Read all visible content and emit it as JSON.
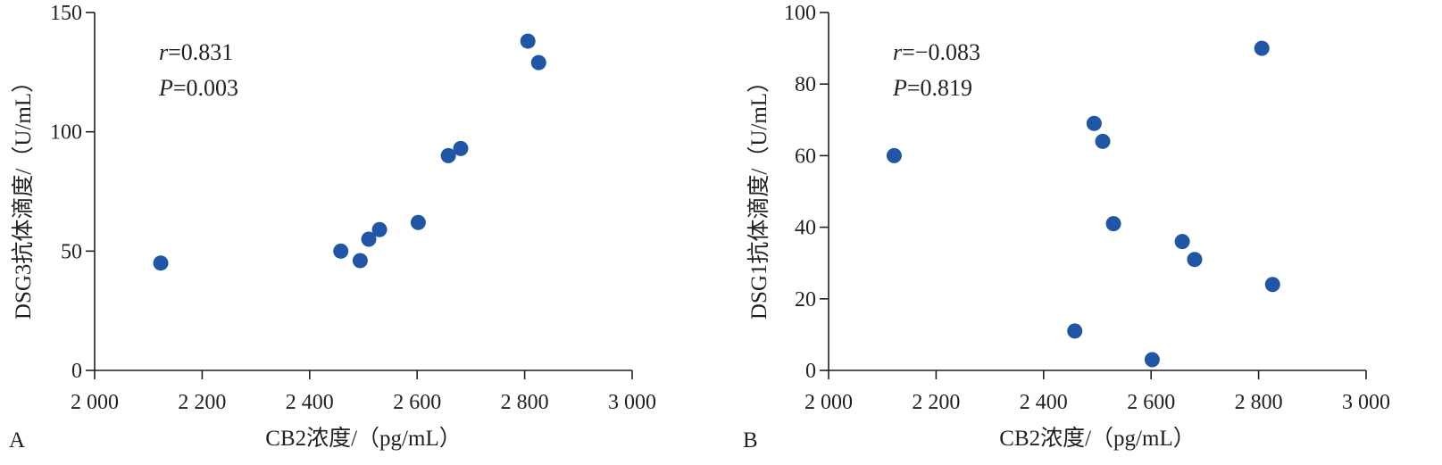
{
  "colors": {
    "point": "#2155a6",
    "axis": "#231f20",
    "background": "#ffffff"
  },
  "chart_data": [
    {
      "type": "scatter",
      "panel_label": "A",
      "xlabel": "CB2浓度/（pg/mL）",
      "ylabel": "DSG3抗体滴度/（U/mL）",
      "xlim": [
        2000,
        3000
      ],
      "ylim": [
        0,
        150
      ],
      "xticks": [
        2000,
        2200,
        2400,
        2600,
        2800,
        3000
      ],
      "xtick_labels": [
        "2 000",
        "2 200",
        "2 400",
        "2 600",
        "2 800",
        "3 000"
      ],
      "yticks": [
        0,
        50,
        100,
        150
      ],
      "ytick_labels": [
        "0",
        "50",
        "100",
        "150"
      ],
      "stats": [
        {
          "symbol": "r",
          "value": "=0.831"
        },
        {
          "symbol": "P",
          "value": "=0.003"
        }
      ],
      "grid": false,
      "points": [
        {
          "x": 2123,
          "y": 45
        },
        {
          "x": 2458,
          "y": 50
        },
        {
          "x": 2494,
          "y": 46
        },
        {
          "x": 2510,
          "y": 55
        },
        {
          "x": 2530,
          "y": 59
        },
        {
          "x": 2602,
          "y": 62
        },
        {
          "x": 2658,
          "y": 90
        },
        {
          "x": 2681,
          "y": 93
        },
        {
          "x": 2806,
          "y": 138
        },
        {
          "x": 2826,
          "y": 129
        }
      ]
    },
    {
      "type": "scatter",
      "panel_label": "B",
      "xlabel": "CB2浓度/（pg/mL）",
      "ylabel": "DSG1抗体滴度/（U/mL）",
      "xlim": [
        2000,
        3000
      ],
      "ylim": [
        0,
        100
      ],
      "xticks": [
        2000,
        2200,
        2400,
        2600,
        2800,
        3000
      ],
      "xtick_labels": [
        "2 000",
        "2 200",
        "2 400",
        "2 600",
        "2 800",
        "3 000"
      ],
      "yticks": [
        0,
        20,
        40,
        60,
        80,
        100
      ],
      "ytick_labels": [
        "0",
        "20",
        "40",
        "60",
        "80",
        "100"
      ],
      "stats": [
        {
          "symbol": "r",
          "value": "=−0.083"
        },
        {
          "symbol": "P",
          "value": "=0.819"
        }
      ],
      "grid": false,
      "points": [
        {
          "x": 2122,
          "y": 60
        },
        {
          "x": 2458,
          "y": 11
        },
        {
          "x": 2494,
          "y": 69
        },
        {
          "x": 2510,
          "y": 64
        },
        {
          "x": 2530,
          "y": 41
        },
        {
          "x": 2602,
          "y": 3
        },
        {
          "x": 2658,
          "y": 36
        },
        {
          "x": 2681,
          "y": 31
        },
        {
          "x": 2806,
          "y": 90
        },
        {
          "x": 2826,
          "y": 24
        }
      ]
    }
  ]
}
